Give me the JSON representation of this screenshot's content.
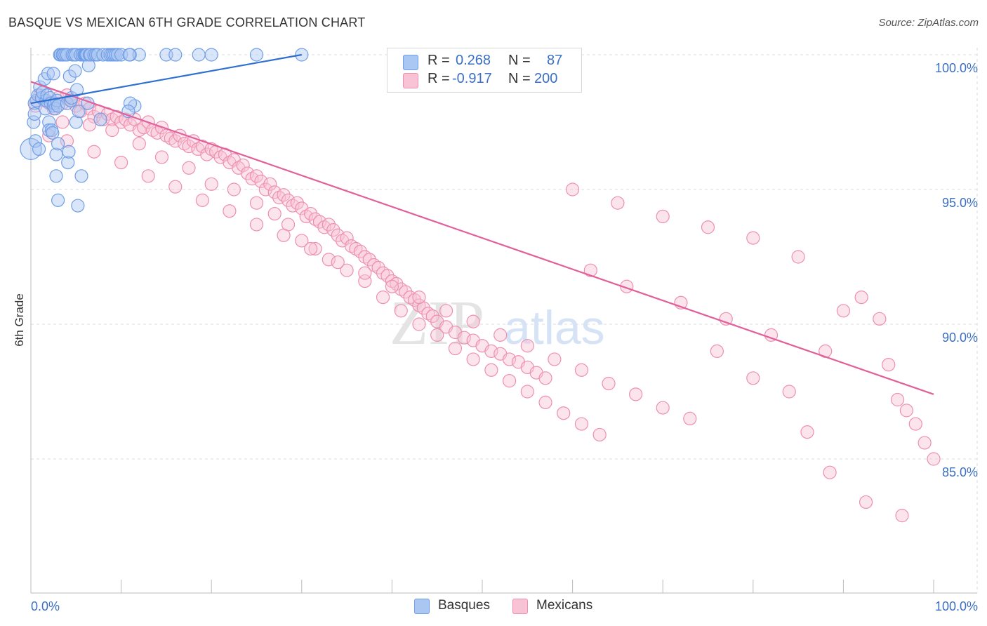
{
  "title": "BASQUE VS MEXICAN 6TH GRADE CORRELATION CHART",
  "source": "Source: ZipAtlas.com",
  "watermark": {
    "zip": "ZIP",
    "atlas": "atlas"
  },
  "colors": {
    "basque": "#6f9ee6",
    "basque_fill": "#aac6f2",
    "basque_line": "#2f6fd0",
    "mexican": "#ee8fb0",
    "mexican_fill": "#f8c3d4",
    "mexican_line": "#e2609a",
    "axis_text": "#3a6fc4",
    "grid": "#dddddd"
  },
  "legend": {
    "rows": [
      {
        "r_label": "R =",
        "r_value": "0.268",
        "n_label": "N =",
        "n_value": "87"
      },
      {
        "r_label": "R =",
        "r_value": "-0.917",
        "n_label": "N =",
        "n_value": "200"
      }
    ]
  },
  "bottom_legend": {
    "basques": "Basques",
    "mexicans": "Mexicans"
  },
  "chart_data": {
    "type": "scatter",
    "title": "BASQUE VS MEXICAN 6TH GRADE CORRELATION CHART",
    "xlabel": "",
    "ylabel": "6th Grade",
    "xlim": [
      0,
      100
    ],
    "ylim": [
      80.3,
      100.5
    ],
    "x_tick_labels": [
      "0.0%",
      "100.0%"
    ],
    "y_ticks": [
      85,
      90,
      95,
      100
    ],
    "y_tick_labels": [
      "85.0%",
      "90.0%",
      "95.0%",
      "100.0%"
    ],
    "grid": true,
    "series": [
      {
        "name": "Basques",
        "r": 0.268,
        "n": 87,
        "trend": {
          "x": [
            0,
            30
          ],
          "y": [
            98.2,
            100.0
          ]
        },
        "points": [
          [
            0,
            96.5
          ],
          [
            0.3,
            97.5
          ],
          [
            0.4,
            98.2
          ],
          [
            0.4,
            97.8
          ],
          [
            0.5,
            96.8
          ],
          [
            0.6,
            98.3
          ],
          [
            0.8,
            98.5
          ],
          [
            0.9,
            96.5
          ],
          [
            1,
            98.8
          ],
          [
            1.2,
            98.4
          ],
          [
            1.3,
            98.6
          ],
          [
            1.5,
            99.1
          ],
          [
            1.6,
            98.0
          ],
          [
            1.7,
            98.3
          ],
          [
            1.8,
            98.5
          ],
          [
            1.9,
            99.3
          ],
          [
            2,
            97.5
          ],
          [
            2,
            97.2
          ],
          [
            2.1,
            98.4
          ],
          [
            2.2,
            98.2
          ],
          [
            2.3,
            97.2
          ],
          [
            2.4,
            97.1
          ],
          [
            2.5,
            98.1
          ],
          [
            2.5,
            99.3
          ],
          [
            2.6,
            98.2
          ],
          [
            2.7,
            98.0
          ],
          [
            2.8,
            96.3
          ],
          [
            2.8,
            95.5
          ],
          [
            2.9,
            98.3
          ],
          [
            3,
            98.1
          ],
          [
            3,
            96.7
          ],
          [
            3,
            94.6
          ],
          [
            3.2,
            100
          ],
          [
            3.3,
            100
          ],
          [
            3.5,
            100
          ],
          [
            3.6,
            100
          ],
          [
            3.8,
            100
          ],
          [
            4,
            100
          ],
          [
            4,
            98.2
          ],
          [
            4.1,
            96.0
          ],
          [
            4.2,
            96.4
          ],
          [
            4.3,
            99.2
          ],
          [
            4.4,
            98.3
          ],
          [
            4.5,
            98.4
          ],
          [
            4.6,
            100
          ],
          [
            4.8,
            100
          ],
          [
            4.9,
            99.4
          ],
          [
            5,
            97.5
          ],
          [
            5,
            100
          ],
          [
            5.1,
            98.7
          ],
          [
            5.2,
            94.4
          ],
          [
            5.3,
            97.9
          ],
          [
            5.5,
            100
          ],
          [
            5.6,
            95.5
          ],
          [
            5.7,
            100
          ],
          [
            5.9,
            100
          ],
          [
            6,
            100
          ],
          [
            6.1,
            100
          ],
          [
            6.2,
            100
          ],
          [
            6.3,
            98.2
          ],
          [
            6.4,
            99.6
          ],
          [
            6.5,
            100
          ],
          [
            6.6,
            100
          ],
          [
            7.0,
            100
          ],
          [
            7.2,
            100
          ],
          [
            7.4,
            100
          ],
          [
            7.7,
            97.6
          ],
          [
            8,
            100
          ],
          [
            8.5,
            100
          ],
          [
            8.8,
            100
          ],
          [
            9,
            100
          ],
          [
            9.2,
            100
          ],
          [
            9.4,
            100
          ],
          [
            9.6,
            100
          ],
          [
            10,
            100
          ],
          [
            11,
            100
          ],
          [
            11.5,
            98.1
          ],
          [
            11.0,
            98.2
          ],
          [
            10.8,
            97.9
          ],
          [
            12,
            100
          ],
          [
            15,
            100
          ],
          [
            16,
            100
          ],
          [
            18.6,
            100
          ],
          [
            20,
            100
          ],
          [
            25,
            100
          ],
          [
            30,
            100
          ],
          [
            10.9,
            100
          ]
        ]
      },
      {
        "name": "Mexicans",
        "r": -0.917,
        "n": 200,
        "trend": {
          "x": [
            0,
            100
          ],
          "y": [
            99.0,
            87.4
          ]
        },
        "points": [
          [
            0.5,
            98.1
          ],
          [
            1,
            98.5
          ],
          [
            1.5,
            98.3
          ],
          [
            2,
            98.2
          ],
          [
            2.5,
            98.0
          ],
          [
            3,
            98.4
          ],
          [
            3.5,
            98.2
          ],
          [
            4,
            98.5
          ],
          [
            4.5,
            98.3
          ],
          [
            5,
            98.1
          ],
          [
            5.5,
            97.9
          ],
          [
            6,
            98.2
          ],
          [
            6.5,
            98.0
          ],
          [
            7,
            97.7
          ],
          [
            7.5,
            97.9
          ],
          [
            8,
            97.6
          ],
          [
            8.5,
            97.8
          ],
          [
            9,
            97.6
          ],
          [
            9.5,
            97.7
          ],
          [
            10,
            97.5
          ],
          [
            10.5,
            97.6
          ],
          [
            11,
            97.4
          ],
          [
            11.5,
            97.6
          ],
          [
            12,
            97.2
          ],
          [
            12.5,
            97.3
          ],
          [
            13,
            97.5
          ],
          [
            13.5,
            97.2
          ],
          [
            14,
            97.1
          ],
          [
            14.5,
            97.3
          ],
          [
            15,
            97.0
          ],
          [
            15.5,
            96.9
          ],
          [
            16,
            96.8
          ],
          [
            16.5,
            97.0
          ],
          [
            17,
            96.7
          ],
          [
            17.5,
            96.6
          ],
          [
            18,
            96.8
          ],
          [
            18.5,
            96.5
          ],
          [
            19,
            96.6
          ],
          [
            19.5,
            96.3
          ],
          [
            20,
            96.5
          ],
          [
            20.5,
            96.4
          ],
          [
            21,
            96.2
          ],
          [
            21.5,
            96.3
          ],
          [
            22,
            96.0
          ],
          [
            22.5,
            96.1
          ],
          [
            23,
            95.8
          ],
          [
            23.5,
            95.9
          ],
          [
            24,
            95.6
          ],
          [
            24.5,
            95.4
          ],
          [
            25,
            95.5
          ],
          [
            25.5,
            95.3
          ],
          [
            26,
            95.0
          ],
          [
            26.5,
            95.2
          ],
          [
            27,
            94.9
          ],
          [
            27.5,
            94.7
          ],
          [
            28,
            94.8
          ],
          [
            28.5,
            94.6
          ],
          [
            29,
            94.4
          ],
          [
            29.5,
            94.5
          ],
          [
            30,
            94.3
          ],
          [
            30.5,
            94.0
          ],
          [
            31,
            94.1
          ],
          [
            31.5,
            93.9
          ],
          [
            32,
            93.8
          ],
          [
            32.5,
            93.6
          ],
          [
            33,
            93.7
          ],
          [
            33.5,
            93.5
          ],
          [
            34,
            93.3
          ],
          [
            34.5,
            93.1
          ],
          [
            35,
            93.2
          ],
          [
            35.5,
            92.9
          ],
          [
            36,
            92.8
          ],
          [
            36.5,
            92.7
          ],
          [
            37,
            92.5
          ],
          [
            37.5,
            92.4
          ],
          [
            38,
            92.2
          ],
          [
            38.5,
            92.1
          ],
          [
            39,
            91.9
          ],
          [
            39.5,
            91.8
          ],
          [
            40,
            91.6
          ],
          [
            40.5,
            91.5
          ],
          [
            41,
            91.3
          ],
          [
            41.5,
            91.2
          ],
          [
            42,
            91.0
          ],
          [
            42.5,
            90.9
          ],
          [
            43,
            90.7
          ],
          [
            43.5,
            90.6
          ],
          [
            44,
            90.4
          ],
          [
            44.5,
            90.3
          ],
          [
            45,
            90.1
          ],
          [
            46,
            89.9
          ],
          [
            47,
            89.7
          ],
          [
            48,
            89.5
          ],
          [
            49,
            89.4
          ],
          [
            50,
            89.2
          ],
          [
            51,
            89.0
          ],
          [
            52,
            88.9
          ],
          [
            53,
            88.7
          ],
          [
            54,
            88.6
          ],
          [
            55,
            88.4
          ],
          [
            56,
            88.2
          ],
          [
            57,
            88.0
          ],
          [
            2,
            97.0
          ],
          [
            3.5,
            97.5
          ],
          [
            6.5,
            97.4
          ],
          [
            9,
            97.2
          ],
          [
            12,
            96.7
          ],
          [
            14.5,
            96.2
          ],
          [
            17.5,
            95.8
          ],
          [
            20,
            95.2
          ],
          [
            22.5,
            95.0
          ],
          [
            25,
            94.5
          ],
          [
            27,
            94.1
          ],
          [
            28.5,
            93.7
          ],
          [
            30,
            93.1
          ],
          [
            31.5,
            92.8
          ],
          [
            33,
            92.4
          ],
          [
            35,
            92.0
          ],
          [
            37,
            91.6
          ],
          [
            39,
            91.0
          ],
          [
            41,
            90.5
          ],
          [
            43,
            90.0
          ],
          [
            45,
            89.6
          ],
          [
            47,
            89.1
          ],
          [
            49,
            88.7
          ],
          [
            51,
            88.3
          ],
          [
            53,
            87.9
          ],
          [
            55,
            87.5
          ],
          [
            57,
            87.1
          ],
          [
            59,
            86.7
          ],
          [
            61,
            86.3
          ],
          [
            63,
            85.9
          ],
          [
            4,
            96.8
          ],
          [
            7,
            96.4
          ],
          [
            10,
            96.0
          ],
          [
            13,
            95.5
          ],
          [
            16,
            95.1
          ],
          [
            19,
            94.6
          ],
          [
            22,
            94.2
          ],
          [
            25,
            93.7
          ],
          [
            28,
            93.3
          ],
          [
            31,
            92.8
          ],
          [
            34,
            92.3
          ],
          [
            37,
            91.9
          ],
          [
            40,
            91.4
          ],
          [
            43,
            91.0
          ],
          [
            46,
            90.5
          ],
          [
            49,
            90.1
          ],
          [
            52,
            89.6
          ],
          [
            55,
            89.2
          ],
          [
            58,
            88.7
          ],
          [
            61,
            88.3
          ],
          [
            64,
            87.8
          ],
          [
            67,
            87.4
          ],
          [
            70,
            86.9
          ],
          [
            73,
            86.5
          ],
          [
            60,
            95.0
          ],
          [
            65,
            94.5
          ],
          [
            70,
            94.0
          ],
          [
            75,
            93.6
          ],
          [
            80,
            93.2
          ],
          [
            85,
            92.5
          ],
          [
            62,
            92.0
          ],
          [
            66,
            91.4
          ],
          [
            72,
            90.8
          ],
          [
            77,
            90.2
          ],
          [
            82,
            89.6
          ],
          [
            88,
            89.0
          ],
          [
            90,
            90.5
          ],
          [
            92,
            91.0
          ],
          [
            94,
            90.2
          ],
          [
            95,
            88.5
          ],
          [
            96,
            87.2
          ],
          [
            97,
            86.8
          ],
          [
            98,
            86.3
          ],
          [
            99,
            85.6
          ],
          [
            100,
            85.0
          ],
          [
            96.5,
            82.9
          ],
          [
            92.5,
            83.4
          ],
          [
            88.5,
            84.5
          ],
          [
            86,
            86.0
          ],
          [
            84,
            87.5
          ],
          [
            80,
            88.0
          ],
          [
            76,
            89.0
          ]
        ]
      }
    ]
  }
}
